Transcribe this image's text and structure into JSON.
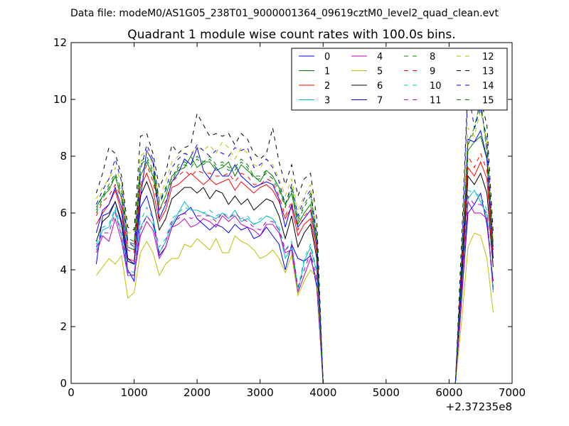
{
  "figure": {
    "suptitle": "Data file: modeM0/AS1G05_238T01_9000001364_09619cztM0_level2_quad_clean.evt",
    "offset_label": "+2.37235e8"
  },
  "chart_data": {
    "type": "line",
    "title": "Quadrant 1 module wise count rates with 100.0s bins.",
    "xlabel": "",
    "ylabel": "",
    "xlim": [
      0,
      7000
    ],
    "ylim": [
      0,
      12
    ],
    "x_offset_label": "+2.37235e8",
    "xticks": [
      0,
      1000,
      2000,
      3000,
      4000,
      5000,
      6000,
      7000
    ],
    "yticks": [
      0,
      2,
      4,
      6,
      8,
      10,
      12
    ],
    "grid": false,
    "legend_position": "top-right",
    "legend_columns": 4,
    "x": [
      400,
      500,
      600,
      700,
      800,
      900,
      1000,
      1100,
      1200,
      1300,
      1400,
      1500,
      1600,
      1700,
      1800,
      1900,
      2000,
      2100,
      2200,
      2300,
      2400,
      2500,
      2600,
      2700,
      2800,
      2900,
      3000,
      3100,
      3200,
      3300,
      3400,
      3500,
      3600,
      3700,
      3800,
      3900,
      4000,
      4100,
      6000,
      6100,
      6200,
      6300,
      6400,
      6500,
      6600,
      6700
    ],
    "series": [
      {
        "name": "0",
        "color": "#0000ff",
        "dash": "solid",
        "values": [
          4.2,
          5.9,
          6.0,
          6.4,
          5.6,
          4.0,
          3.6,
          6.2,
          6.6,
          5.8,
          4.5,
          4.8,
          5.5,
          5.9,
          6.0,
          6.2,
          5.8,
          5.6,
          5.4,
          5.6,
          5.5,
          5.3,
          5.6,
          5.4,
          5.5,
          5.1,
          5.2,
          5.5,
          5.2,
          4.9,
          4.0,
          4.9,
          4.4,
          4.3,
          4.5,
          3.4,
          0,
          0,
          0,
          0,
          3.0,
          6.0,
          6.3,
          6.7,
          5.6,
          3.6
        ]
      },
      {
        "name": "1",
        "color": "#008000",
        "dash": "solid",
        "values": [
          6.2,
          6.6,
          6.8,
          7.3,
          6.5,
          4.8,
          4.7,
          7.3,
          7.8,
          7.3,
          6.1,
          6.6,
          7.3,
          7.5,
          7.6,
          8.0,
          7.6,
          7.8,
          7.8,
          7.5,
          7.6,
          7.8,
          7.3,
          7.7,
          7.5,
          7.3,
          7.1,
          7.5,
          7.3,
          6.9,
          6.3,
          6.7,
          5.6,
          6.0,
          6.3,
          5.0,
          0,
          0,
          0,
          0,
          4.0,
          8.2,
          8.5,
          8.7,
          7.9,
          4.8
        ]
      },
      {
        "name": "2",
        "color": "#ff0000",
        "dash": "solid",
        "values": [
          5.6,
          6.0,
          6.3,
          6.8,
          6.0,
          4.4,
          4.3,
          6.9,
          7.4,
          6.8,
          5.7,
          6.1,
          6.9,
          7.0,
          7.2,
          7.4,
          7.2,
          7.0,
          7.2,
          7.0,
          7.1,
          7.2,
          6.8,
          7.1,
          6.9,
          6.7,
          6.9,
          7.0,
          6.8,
          6.4,
          5.8,
          6.2,
          5.2,
          5.6,
          5.8,
          4.6,
          0,
          0,
          0,
          0,
          3.7,
          7.6,
          7.3,
          7.8,
          7.2,
          4.4
        ]
      },
      {
        "name": "3",
        "color": "#00bfbf",
        "dash": "solid",
        "values": [
          4.7,
          5.4,
          5.5,
          6.1,
          5.2,
          3.9,
          3.8,
          5.5,
          5.9,
          5.6,
          4.6,
          5.0,
          5.6,
          6.0,
          6.4,
          6.1,
          6.1,
          6.0,
          5.9,
          5.8,
          6.0,
          5.8,
          6.1,
          5.7,
          5.8,
          5.6,
          5.7,
          5.9,
          5.8,
          5.4,
          4.4,
          4.8,
          3.2,
          4.3,
          4.8,
          3.9,
          0,
          0,
          0,
          0,
          3.1,
          6.5,
          6.8,
          6.4,
          5.9,
          3.2
        ]
      },
      {
        "name": "4",
        "color": "#bf00bf",
        "dash": "solid",
        "values": [
          4.6,
          5.2,
          5.0,
          5.8,
          5.0,
          3.8,
          3.8,
          5.2,
          5.7,
          5.4,
          4.4,
          4.8,
          5.5,
          5.6,
          5.8,
          5.5,
          5.6,
          5.8,
          5.7,
          5.5,
          5.9,
          5.7,
          5.9,
          5.6,
          5.5,
          5.4,
          5.2,
          5.6,
          5.6,
          5.3,
          4.6,
          4.7,
          3.2,
          3.8,
          4.4,
          3.6,
          0,
          0,
          0,
          0,
          2.9,
          6.4,
          6.0,
          6.0,
          5.8,
          3.3
        ]
      },
      {
        "name": "5",
        "color": "#bfbf00",
        "dash": "solid",
        "values": [
          3.8,
          4.1,
          4.4,
          4.2,
          4.5,
          3.0,
          3.2,
          4.6,
          5.0,
          4.6,
          3.8,
          4.2,
          4.4,
          4.4,
          4.9,
          4.8,
          5.1,
          4.9,
          4.7,
          5.1,
          4.6,
          4.6,
          5.2,
          5.0,
          4.9,
          4.7,
          4.4,
          4.5,
          4.7,
          4.4,
          3.9,
          4.5,
          3.1,
          3.6,
          4.0,
          3.7,
          0,
          0,
          0,
          0,
          2.2,
          4.8,
          5.3,
          5.2,
          4.4,
          2.5
        ]
      },
      {
        "name": "6",
        "color": "#000000",
        "dash": "solid",
        "values": [
          5.0,
          5.7,
          5.9,
          6.4,
          5.7,
          4.3,
          4.2,
          6.6,
          7.1,
          6.5,
          5.4,
          5.8,
          6.5,
          6.7,
          6.9,
          6.9,
          6.7,
          6.9,
          6.5,
          6.8,
          6.7,
          6.3,
          6.6,
          6.3,
          6.5,
          6.1,
          6.3,
          6.5,
          6.4,
          5.9,
          5.1,
          5.9,
          4.8,
          5.3,
          5.6,
          4.4,
          0,
          0,
          0,
          0,
          3.5,
          7.3,
          7.0,
          7.4,
          6.7,
          4.1
        ]
      },
      {
        "name": "7",
        "color": "#0000ff",
        "dash": "solid",
        "values": [
          5.3,
          6.1,
          6.3,
          6.9,
          6.2,
          4.4,
          4.2,
          6.5,
          8.2,
          7.8,
          5.8,
          6.3,
          7.1,
          7.4,
          7.9,
          7.7,
          8.3,
          7.5,
          7.2,
          7.6,
          7.3,
          7.3,
          7.7,
          7.3,
          7.1,
          6.9,
          7.0,
          7.1,
          7.0,
          6.5,
          5.5,
          6.3,
          5.5,
          5.8,
          6.1,
          4.8,
          0,
          0,
          0,
          0,
          3.8,
          8.6,
          8.5,
          8.9,
          7.9,
          4.4
        ]
      },
      {
        "name": "8",
        "color": "#008000",
        "dash": "dashed",
        "values": [
          6.0,
          6.5,
          6.9,
          7.3,
          6.7,
          5.0,
          4.9,
          7.7,
          7.9,
          7.4,
          6.3,
          6.8,
          7.1,
          7.6,
          7.7,
          7.6,
          7.9,
          7.7,
          7.9,
          7.6,
          7.7,
          7.5,
          7.5,
          7.8,
          7.6,
          7.2,
          7.2,
          7.4,
          7.2,
          6.8,
          6.2,
          6.8,
          5.7,
          6.2,
          6.6,
          5.0,
          0,
          0,
          0,
          0,
          4.3,
          8.4,
          8.9,
          10.0,
          8.1,
          4.7
        ]
      },
      {
        "name": "9",
        "color": "#ff0000",
        "dash": "dashed",
        "values": [
          5.9,
          6.4,
          6.6,
          7.0,
          6.5,
          4.7,
          4.6,
          7.0,
          7.7,
          7.1,
          6.1,
          6.4,
          7.1,
          7.3,
          7.5,
          7.3,
          7.5,
          7.4,
          7.4,
          7.3,
          7.3,
          7.4,
          7.1,
          7.4,
          7.3,
          7.0,
          7.0,
          7.2,
          7.1,
          6.6,
          5.9,
          6.4,
          5.4,
          5.9,
          6.1,
          4.8,
          0,
          0,
          0,
          0,
          3.9,
          8.0,
          7.6,
          8.1,
          7.5,
          4.5
        ]
      },
      {
        "name": "10",
        "color": "#00bfbf",
        "dash": "dashed",
        "values": [
          4.9,
          5.5,
          5.6,
          6.2,
          5.4,
          4.0,
          3.9,
          5.7,
          6.2,
          5.8,
          4.8,
          5.1,
          5.8,
          6.0,
          6.2,
          6.1,
          6.1,
          6.0,
          6.1,
          5.9,
          6.0,
          5.9,
          5.9,
          5.8,
          5.9,
          5.6,
          5.8,
          5.9,
          5.8,
          5.5,
          4.7,
          5.0,
          3.3,
          4.4,
          4.9,
          4.0,
          0,
          0,
          0,
          0,
          3.2,
          6.8,
          6.7,
          6.6,
          6.1,
          3.3
        ]
      },
      {
        "name": "11",
        "color": "#bf00bf",
        "dash": "dashed",
        "values": [
          4.8,
          5.3,
          5.3,
          6.0,
          5.2,
          3.9,
          3.9,
          5.4,
          5.9,
          5.6,
          4.6,
          5.0,
          5.7,
          5.8,
          6.0,
          5.8,
          5.9,
          5.9,
          5.9,
          5.7,
          6.0,
          5.8,
          6.0,
          5.8,
          5.7,
          5.5,
          5.4,
          5.7,
          5.7,
          5.4,
          4.7,
          4.9,
          3.4,
          4.0,
          4.6,
          3.7,
          0,
          0,
          0,
          0,
          3.0,
          6.6,
          6.3,
          6.3,
          6.0,
          3.4
        ]
      },
      {
        "name": "12",
        "color": "#bfbf00",
        "dash": "dashed",
        "values": [
          6.5,
          6.9,
          7.2,
          7.6,
          7.1,
          5.3,
          5.3,
          8.0,
          8.2,
          7.7,
          6.5,
          7.1,
          7.8,
          8.0,
          8.1,
          8.1,
          8.3,
          8.2,
          8.4,
          8.1,
          8.5,
          8.3,
          7.9,
          8.3,
          8.1,
          7.7,
          7.6,
          7.9,
          7.7,
          7.2,
          6.6,
          7.2,
          6.1,
          6.6,
          7.0,
          5.4,
          0,
          0,
          0,
          0,
          4.5,
          9.0,
          8.7,
          9.6,
          8.5,
          5.0
        ]
      },
      {
        "name": "13",
        "color": "#000000",
        "dash": "dashed",
        "values": [
          6.7,
          7.4,
          8.3,
          8.1,
          7.3,
          5.5,
          5.4,
          8.7,
          8.8,
          8.1,
          6.9,
          7.4,
          8.4,
          8.1,
          8.3,
          8.4,
          9.5,
          9.1,
          8.7,
          8.8,
          8.7,
          8.8,
          8.4,
          8.8,
          8.6,
          8.1,
          7.9,
          8.1,
          9.0,
          7.8,
          7.0,
          7.7,
          6.6,
          7.2,
          7.4,
          5.8,
          0,
          0,
          0,
          0,
          5.1,
          10.6,
          9.9,
          10.0,
          9.1,
          5.3
        ]
      },
      {
        "name": "14",
        "color": "#0000ff",
        "dash": "dashed",
        "values": [
          6.3,
          6.8,
          7.2,
          7.9,
          7.1,
          5.0,
          4.8,
          7.5,
          8.4,
          7.9,
          6.4,
          6.8,
          7.6,
          7.9,
          8.1,
          8.0,
          8.4,
          8.2,
          8.0,
          8.2,
          8.1,
          8.0,
          8.3,
          8.2,
          8.3,
          7.6,
          7.7,
          7.9,
          7.6,
          7.1,
          6.3,
          7.0,
          5.9,
          6.5,
          6.8,
          5.2,
          0,
          0,
          0,
          0,
          4.4,
          10.4,
          9.0,
          9.7,
          8.6,
          4.9
        ]
      },
      {
        "name": "15",
        "color": "#008000",
        "dash": "dashed",
        "values": [
          6.1,
          6.6,
          7.0,
          7.4,
          6.8,
          5.1,
          5.0,
          7.8,
          8.0,
          7.5,
          6.4,
          6.9,
          7.2,
          7.7,
          7.8,
          7.7,
          8.0,
          7.8,
          8.0,
          7.7,
          7.8,
          7.6,
          7.6,
          7.9,
          7.7,
          7.3,
          7.3,
          7.5,
          7.3,
          6.9,
          6.3,
          6.9,
          5.8,
          6.3,
          6.7,
          5.1,
          0,
          0,
          0,
          0,
          4.4,
          8.5,
          9.0,
          10.0,
          8.2,
          4.8
        ]
      }
    ]
  }
}
